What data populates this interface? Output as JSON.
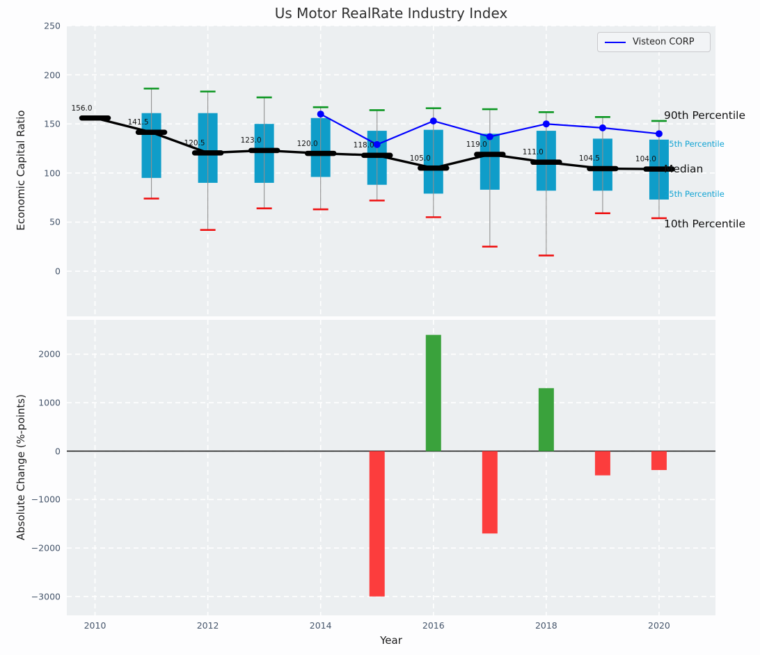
{
  "title": "Us Motor RealRate Industry Index",
  "legend": {
    "label": "Visteon CORP",
    "line_color": "#0000ff"
  },
  "axes": {
    "x_label": "Year",
    "top_y_label": "Economic Capital Ratio",
    "bottom_y_label": "Absolute Change (%-points)"
  },
  "percentile_labels": [
    {
      "text": "90th Percentile",
      "color": "#111111",
      "size": 15.5,
      "anchor": "p90",
      "dy": -8
    },
    {
      "text": "75th Percentile",
      "color": "#0fa3d3",
      "size": 11.5,
      "anchor": "p75",
      "dy": 6
    },
    {
      "text": "Median",
      "color": "#111111",
      "size": 15.5,
      "anchor": "median",
      "dy": 0
    },
    {
      "text": "25th Percentile",
      "color": "#0fa3d3",
      "size": 11.5,
      "anchor": "p25",
      "dy": -8
    },
    {
      "text": "10th Percentile",
      "color": "#111111",
      "size": 15.5,
      "anchor": "p10",
      "dy": 8
    }
  ],
  "colors": {
    "axes_bg": "#eceff1",
    "grid": "#ffffff",
    "box_fill": "#0f9dc9",
    "whisker_line": "#909090",
    "cap_top_green": "#0a9620",
    "cap_bottom_red": "#ee1111",
    "median_black": "#000000",
    "visteon_blue": "#0000ff",
    "bar_positive_green": "#3aa23c",
    "bar_negative_red": "#fc3d3d",
    "zero_line": "#000000",
    "tick_text": "#44546a"
  },
  "chart_data": [
    {
      "type": "boxplot",
      "title": "Us Motor RealRate Industry Index",
      "ylabel": "Economic Capital Ratio",
      "ylim": [
        -46,
        250
      ],
      "yticks": [
        0,
        50,
        100,
        150,
        200,
        250
      ],
      "xlim": [
        2009.5,
        2021.0
      ],
      "grid": true,
      "x": [
        2010,
        2011,
        2012,
        2013,
        2014,
        2015,
        2016,
        2017,
        2018,
        2019,
        2020
      ],
      "median": [
        156.0,
        141.5,
        120.5,
        123.0,
        120.0,
        118.0,
        105.0,
        119.0,
        111.0,
        104.5,
        104.0
      ],
      "median_labels": [
        "156.0",
        "141.5",
        "120.5",
        "123.0",
        "120.0",
        "118.0",
        "105.0",
        "119.0",
        "111.0",
        "104.5",
        "104.0"
      ],
      "p25": [
        null,
        95,
        90,
        90,
        96,
        88,
        79,
        83,
        82,
        82,
        73
      ],
      "p75": [
        null,
        161,
        161,
        150,
        156,
        143,
        144,
        140,
        143,
        135,
        134
      ],
      "p10": [
        null,
        74,
        42,
        64,
        63,
        72,
        55,
        25,
        16,
        59,
        54
      ],
      "p90": [
        null,
        186,
        183,
        177,
        167,
        164,
        166,
        165,
        162,
        157,
        153
      ],
      "series": [
        {
          "name": "Visteon CORP",
          "x": [
            2014,
            2015,
            2016,
            2017,
            2018,
            2019,
            2020
          ],
          "values": [
            160,
            129,
            153,
            137,
            150,
            146,
            140
          ],
          "color": "#0000ff",
          "marker": "circle"
        }
      ]
    },
    {
      "type": "bar",
      "ylabel": "Absolute Change (%-points)",
      "xlabel": "Year",
      "ylim": [
        -3390,
        2710
      ],
      "yticks": [
        -3000,
        -2000,
        -1000,
        0,
        1000,
        2000
      ],
      "xlim": [
        2009.5,
        2021.0
      ],
      "xticks": [
        2010,
        2012,
        2014,
        2016,
        2018,
        2020
      ],
      "grid": true,
      "x": [
        2015,
        2016,
        2017,
        2018,
        2019,
        2020
      ],
      "values": [
        -3000,
        2400,
        -1700,
        1300,
        -500,
        -390
      ]
    }
  ]
}
